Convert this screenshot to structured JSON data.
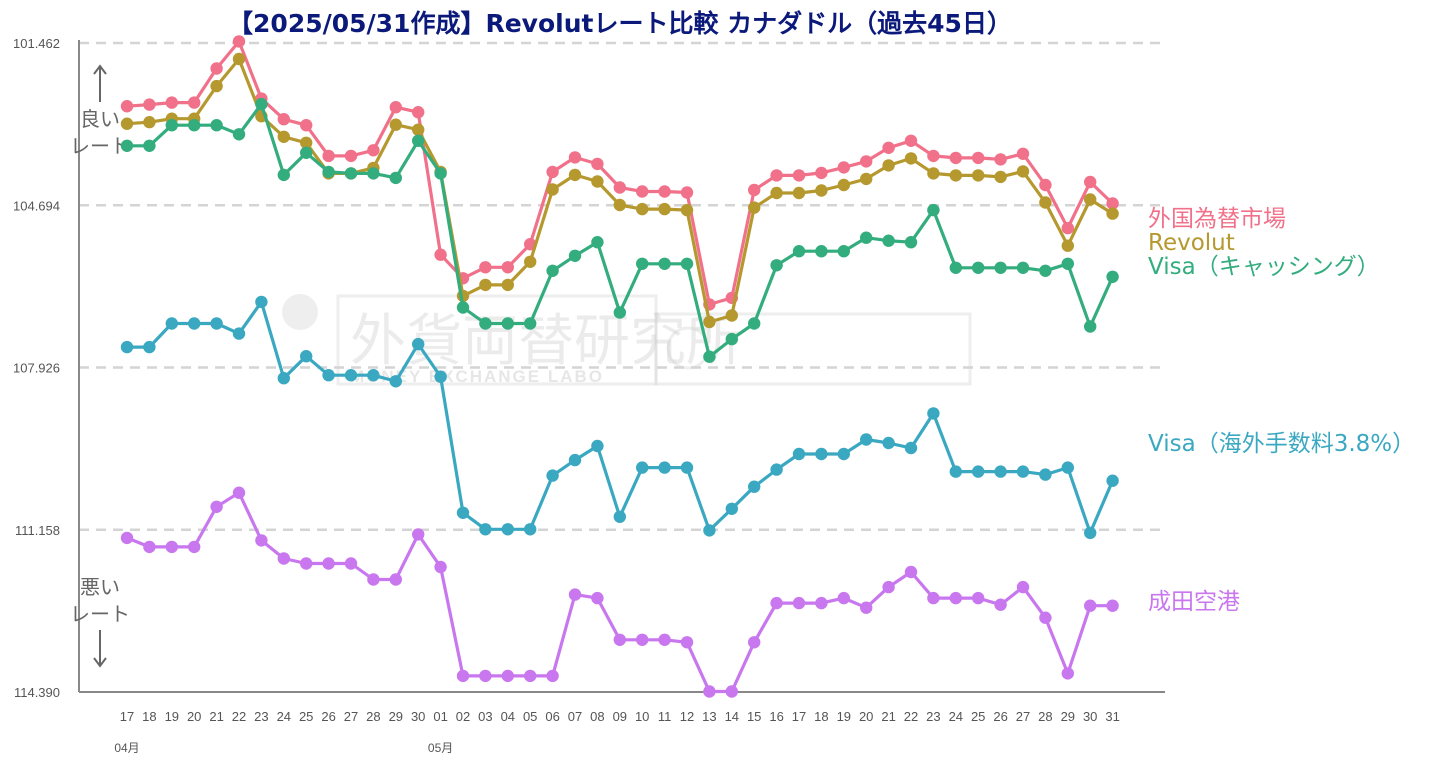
{
  "chart_data": {
    "type": "line",
    "title": "【2025/05/31作成】Revolutレート比較 カナダドル（過去45日）",
    "y_inverted": true,
    "ylim": [
      101.462,
      114.39
    ],
    "yticks": [
      "101.462",
      "104.694",
      "107.926",
      "111.158",
      "114.390"
    ],
    "grid": "horizontal dashed",
    "categories": [
      "17",
      "18",
      "19",
      "20",
      "21",
      "22",
      "23",
      "24",
      "25",
      "26",
      "27",
      "28",
      "29",
      "30",
      "01",
      "02",
      "03",
      "04",
      "05",
      "06",
      "07",
      "08",
      "09",
      "10",
      "11",
      "12",
      "13",
      "14",
      "15",
      "16",
      "17",
      "18",
      "19",
      "20",
      "21",
      "22",
      "23",
      "24",
      "25",
      "26",
      "27",
      "28",
      "29",
      "30",
      "31"
    ],
    "month_labels": [
      {
        "label": "04月",
        "index": 0
      },
      {
        "label": "05月",
        "index": 14
      }
    ],
    "better_label": "良い\nレート",
    "worse_label": "悪い\nレート",
    "series": [
      {
        "name": "外国為替市場",
        "color": "#f07189",
        "values": [
          102.72,
          102.69,
          102.65,
          102.65,
          101.97,
          101.43,
          102.57,
          102.98,
          103.1,
          103.71,
          103.71,
          103.6,
          102.74,
          102.84,
          105.68,
          106.15,
          105.93,
          105.93,
          105.47,
          104.03,
          103.74,
          103.87,
          104.34,
          104.42,
          104.42,
          104.44,
          106.67,
          106.54,
          104.39,
          104.1,
          104.1,
          104.05,
          103.94,
          103.82,
          103.55,
          103.41,
          103.71,
          103.75,
          103.75,
          103.78,
          103.67,
          104.29,
          105.15,
          104.23,
          104.66
        ]
      },
      {
        "name": "Revolut",
        "color": "#b5982e",
        "values": [
          103.07,
          103.04,
          102.97,
          102.97,
          102.32,
          101.78,
          102.92,
          103.33,
          103.45,
          104.06,
          104.06,
          103.95,
          103.09,
          103.19,
          104.03,
          106.5,
          106.28,
          106.28,
          105.82,
          104.38,
          104.09,
          104.22,
          104.69,
          104.77,
          104.77,
          104.79,
          107.02,
          106.89,
          104.74,
          104.45,
          104.45,
          104.4,
          104.29,
          104.17,
          103.9,
          103.76,
          104.06,
          104.1,
          104.1,
          104.13,
          104.02,
          104.64,
          105.5,
          104.58,
          104.86
        ]
      },
      {
        "name": "Visa（キャッシング）",
        "color": "#33ac7e",
        "values": [
          103.51,
          103.51,
          103.1,
          103.1,
          103.1,
          103.28,
          102.68,
          104.09,
          103.65,
          104.03,
          104.06,
          104.06,
          104.15,
          103.41,
          104.06,
          106.73,
          107.05,
          107.05,
          107.05,
          106.0,
          105.7,
          105.43,
          106.83,
          105.86,
          105.86,
          105.86,
          107.71,
          107.36,
          107.05,
          105.89,
          105.61,
          105.61,
          105.61,
          105.34,
          105.4,
          105.43,
          104.79,
          105.94,
          105.94,
          105.94,
          105.94,
          106.0,
          105.86,
          107.11,
          106.12
        ]
      },
      {
        "name": "Visa（海外手数料3.8%）",
        "color": "#3aa8c1",
        "values": [
          107.52,
          107.52,
          107.05,
          107.05,
          107.05,
          107.25,
          106.62,
          108.14,
          107.7,
          108.08,
          108.08,
          108.08,
          108.2,
          107.46,
          108.11,
          110.82,
          111.15,
          111.15,
          111.15,
          110.08,
          109.77,
          109.49,
          110.9,
          109.92,
          109.92,
          109.92,
          111.17,
          110.74,
          110.3,
          109.96,
          109.65,
          109.65,
          109.65,
          109.36,
          109.43,
          109.53,
          108.84,
          110.0,
          110.0,
          110.0,
          110.0,
          110.06,
          109.92,
          111.22,
          110.18
        ]
      },
      {
        "name": "成田空港",
        "color": "#c877ef",
        "values": [
          111.32,
          111.5,
          111.5,
          111.5,
          110.7,
          110.42,
          111.37,
          111.73,
          111.83,
          111.83,
          111.83,
          112.15,
          112.15,
          111.25,
          111.9,
          114.07,
          114.07,
          114.07,
          114.07,
          114.07,
          112.45,
          112.52,
          113.35,
          113.35,
          113.35,
          113.4,
          114.38,
          114.38,
          113.4,
          112.62,
          112.62,
          112.62,
          112.52,
          112.71,
          112.3,
          112.0,
          112.52,
          112.52,
          112.52,
          112.65,
          112.3,
          112.91,
          114.02,
          112.67,
          112.67
        ]
      }
    ]
  },
  "watermark": {
    "main": "外貨両替研究所",
    "sub": "MONEY EXCHANGE LABO"
  }
}
